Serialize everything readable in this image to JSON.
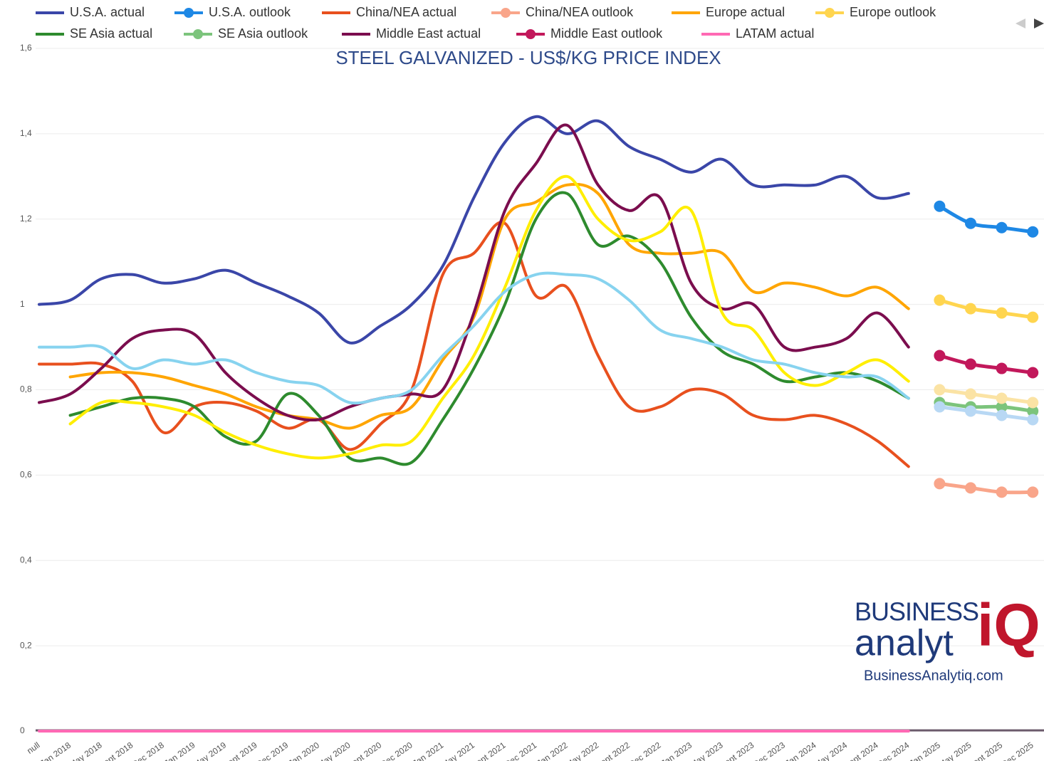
{
  "chart_data": {
    "type": "line",
    "title": "STEEL GALVANIZED - US$/KG PRICE INDEX",
    "categories": [
      "null",
      "Jan 2018",
      "May 2018",
      "Sept 2018",
      "Dec 2018",
      "Jan 2019",
      "May 2019",
      "Sept 2019",
      "Dec 2019",
      "Jan 2020",
      "May 2020",
      "Sept 2020",
      "Dec 2020",
      "Jan 2021",
      "May 2021",
      "Sept 2021",
      "Dec 2021",
      "Jan 2022",
      "May 2022",
      "Sept 2022",
      "Dec 2022",
      "Jan 2023",
      "May 2023",
      "Sept 2023",
      "Dec 2023",
      "Jan 2024",
      "May 2024",
      "Sept 2024",
      "Dec 2024",
      "Jan 2025",
      "May 2025",
      "Sept 2025",
      "Dec 2025"
    ],
    "ylim": [
      0,
      1.6
    ],
    "yticks": [
      0,
      {
        "value": 0.2,
        "label": "0,2"
      },
      {
        "value": 0.4,
        "label": "0,4"
      },
      {
        "value": 0.6,
        "label": "0,6"
      },
      {
        "value": 0.8,
        "label": "0,8"
      },
      1,
      {
        "value": 1.2,
        "label": "1,2"
      },
      {
        "value": 1.4,
        "label": "1,4"
      },
      {
        "value": 1.6,
        "label": "1,6"
      }
    ],
    "grid": true,
    "series": [
      {
        "name": "U.S.A. actual",
        "color": "#3a46a8",
        "values": [
          1.0,
          1.01,
          1.06,
          1.07,
          1.05,
          1.06,
          1.08,
          1.05,
          1.02,
          0.98,
          0.91,
          0.95,
          1.0,
          1.09,
          1.25,
          1.38,
          1.44,
          1.4,
          1.43,
          1.37,
          1.34,
          1.31,
          1.34,
          1.28,
          1.28,
          1.28,
          1.3,
          1.25,
          1.26,
          null,
          null,
          null,
          null
        ]
      },
      {
        "name": "U.S.A. outlook",
        "color": "#1e88e5",
        "markers": true,
        "values": [
          null,
          null,
          null,
          null,
          null,
          null,
          null,
          null,
          null,
          null,
          null,
          null,
          null,
          null,
          null,
          null,
          null,
          null,
          null,
          null,
          null,
          null,
          null,
          null,
          null,
          null,
          null,
          null,
          null,
          1.23,
          1.19,
          1.18,
          1.17
        ]
      },
      {
        "name": "China/NEA actual",
        "color": "#e8501e",
        "values": [
          0.86,
          0.86,
          0.86,
          0.82,
          0.7,
          0.76,
          0.77,
          0.75,
          0.71,
          0.73,
          0.66,
          0.72,
          0.8,
          1.07,
          1.12,
          1.19,
          1.02,
          1.04,
          0.88,
          0.76,
          0.76,
          0.8,
          0.79,
          0.74,
          0.73,
          0.74,
          0.72,
          0.68,
          0.62,
          null,
          null,
          null,
          null
        ]
      },
      {
        "name": "China/NEA outlook",
        "color": "#f9a58a",
        "markers": true,
        "values": [
          null,
          null,
          null,
          null,
          null,
          null,
          null,
          null,
          null,
          null,
          null,
          null,
          null,
          null,
          null,
          null,
          null,
          null,
          null,
          null,
          null,
          null,
          null,
          null,
          null,
          null,
          null,
          null,
          null,
          0.58,
          0.57,
          0.56,
          0.56
        ]
      },
      {
        "name": "Europe actual",
        "color": "#ffa500",
        "values": [
          null,
          0.83,
          0.84,
          0.84,
          0.83,
          0.81,
          0.79,
          0.76,
          0.74,
          0.73,
          0.71,
          0.74,
          0.76,
          0.87,
          0.97,
          1.2,
          1.24,
          1.28,
          1.26,
          1.14,
          1.12,
          1.12,
          1.12,
          1.03,
          1.05,
          1.04,
          1.02,
          1.04,
          0.99,
          null,
          null,
          null,
          null
        ]
      },
      {
        "name": "Europe outlook",
        "color": "#ffd54f",
        "markers": true,
        "values": [
          null,
          null,
          null,
          null,
          null,
          null,
          null,
          null,
          null,
          null,
          null,
          null,
          null,
          null,
          null,
          null,
          null,
          null,
          null,
          null,
          null,
          null,
          null,
          null,
          null,
          null,
          null,
          null,
          null,
          1.01,
          0.99,
          0.98,
          0.97
        ]
      },
      {
        "name": "SE Asia actual",
        "color": "#2e8b2e",
        "values": [
          null,
          0.74,
          0.76,
          0.78,
          0.78,
          0.76,
          0.69,
          0.68,
          0.79,
          0.74,
          0.64,
          0.64,
          0.63,
          0.73,
          0.85,
          1.0,
          1.2,
          1.26,
          1.14,
          1.16,
          1.1,
          0.97,
          0.89,
          0.86,
          0.82,
          0.83,
          0.84,
          0.82,
          0.78,
          null,
          null,
          null,
          null
        ]
      },
      {
        "name": "SE Asia outlook",
        "color": "#7cc47c",
        "markers": true,
        "values": [
          null,
          null,
          null,
          null,
          null,
          null,
          null,
          null,
          null,
          null,
          null,
          null,
          null,
          null,
          null,
          null,
          null,
          null,
          null,
          null,
          null,
          null,
          null,
          null,
          null,
          null,
          null,
          null,
          null,
          0.77,
          0.76,
          0.76,
          0.75
        ]
      },
      {
        "name": "Middle East actual",
        "color": "#7b0d4e",
        "values": [
          0.77,
          0.79,
          0.85,
          0.92,
          0.94,
          0.93,
          0.84,
          0.78,
          0.74,
          0.73,
          0.76,
          0.78,
          0.79,
          0.8,
          0.98,
          1.22,
          1.33,
          1.42,
          1.28,
          1.22,
          1.25,
          1.05,
          0.99,
          1.0,
          0.9,
          0.9,
          0.92,
          0.98,
          0.9,
          null,
          null,
          null,
          null
        ]
      },
      {
        "name": "Middle East outlook",
        "color": "#c2185b",
        "markers": true,
        "values": [
          null,
          null,
          null,
          null,
          null,
          null,
          null,
          null,
          null,
          null,
          null,
          null,
          null,
          null,
          null,
          null,
          null,
          null,
          null,
          null,
          null,
          null,
          null,
          null,
          null,
          null,
          null,
          null,
          null,
          0.88,
          0.86,
          0.85,
          0.84
        ]
      },
      {
        "name": "LATAM actual",
        "color": "#ff69b4",
        "values": [
          0,
          0,
          0,
          0,
          0,
          0,
          0,
          0,
          0,
          0,
          0,
          0,
          0,
          0,
          0,
          0,
          0,
          0,
          0,
          0,
          0,
          0,
          0,
          0,
          0,
          0,
          0,
          0,
          0,
          null,
          null,
          null,
          null
        ]
      },
      {
        "color": "#ffee00",
        "values": [
          null,
          0.72,
          0.77,
          0.77,
          0.76,
          0.74,
          0.7,
          0.67,
          0.65,
          0.64,
          0.65,
          0.67,
          0.68,
          0.78,
          0.88,
          1.04,
          1.22,
          1.3,
          1.2,
          1.15,
          1.17,
          1.22,
          0.98,
          0.94,
          0.84,
          0.81,
          0.84,
          0.87,
          0.82,
          null,
          null,
          null,
          null
        ]
      },
      {
        "color": "#fbe3a4",
        "markers": true,
        "values": [
          null,
          null,
          null,
          null,
          null,
          null,
          null,
          null,
          null,
          null,
          null,
          null,
          null,
          null,
          null,
          null,
          null,
          null,
          null,
          null,
          null,
          null,
          null,
          null,
          null,
          null,
          null,
          null,
          null,
          0.8,
          0.79,
          0.78,
          0.77
        ]
      },
      {
        "color": "#87d3ef",
        "values": [
          0.9,
          0.9,
          0.9,
          0.85,
          0.87,
          0.86,
          0.87,
          0.84,
          0.82,
          0.81,
          0.77,
          0.78,
          0.8,
          0.88,
          0.95,
          1.03,
          1.07,
          1.07,
          1.06,
          1.01,
          0.94,
          0.92,
          0.9,
          0.87,
          0.86,
          0.84,
          0.83,
          0.83,
          0.78,
          null,
          null,
          null,
          null
        ]
      },
      {
        "color": "#b8d8f4",
        "markers": true,
        "values": [
          null,
          null,
          null,
          null,
          null,
          null,
          null,
          null,
          null,
          null,
          null,
          null,
          null,
          null,
          null,
          null,
          null,
          null,
          null,
          null,
          null,
          null,
          null,
          null,
          null,
          null,
          null,
          null,
          null,
          0.76,
          0.75,
          0.74,
          0.73
        ]
      }
    ]
  },
  "logo": {
    "line1": "BUSINESS",
    "line2": "analyt",
    "mark": "iQ",
    "url": "BusinessAnalytiq.com"
  }
}
